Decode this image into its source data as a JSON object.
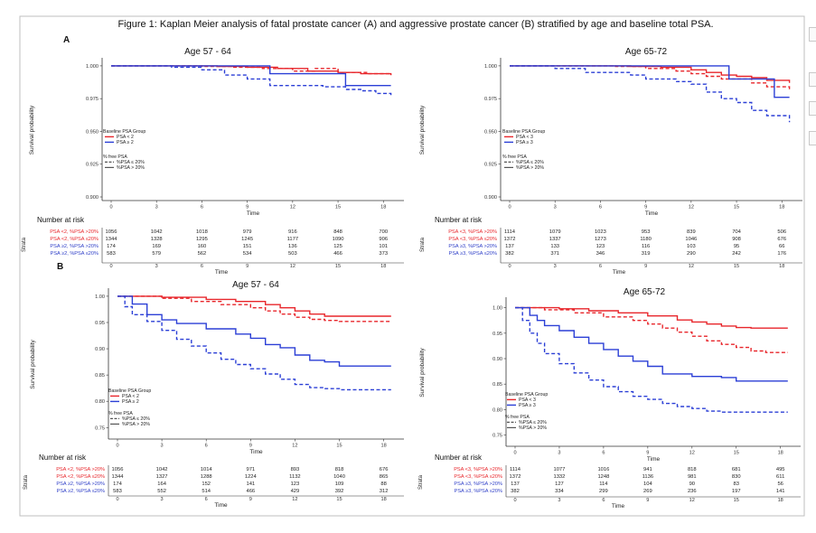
{
  "figure": {
    "title": "Figure 1:  Kaplan Meier analysis of fatal prostate cancer (A) and aggressive prostate cancer (B) stratified by age and baseline total PSA.",
    "panel_a_label": "A",
    "panel_b_label": "B"
  },
  "chart_data": [
    {
      "id": "A1",
      "type": "line",
      "title": "Age 57 - 64",
      "xlabel": "Time",
      "ylabel": "Survival probability",
      "xlim": [
        0,
        19
      ],
      "ylim": [
        0.9,
        1.002
      ],
      "xticks": [
        0,
        3,
        6,
        9,
        12,
        15,
        18
      ],
      "yticks": [
        "1.000",
        "0.975",
        "0.950",
        "0.925",
        "0.900"
      ],
      "ytick_values": [
        1.0,
        0.975,
        0.95,
        0.925,
        0.9
      ],
      "legend": {
        "group_title": "Baseline PSA Group",
        "group_items": [
          "PSA < 2",
          "PSA ≥ 2"
        ],
        "free_title": "% free PSA",
        "free_items": [
          "%PSA ≤ 20%",
          "%PSA > 20%"
        ]
      },
      "series": [
        {
          "name": "PSA <2, %PSA >20%",
          "color": "#e8262b",
          "dash": false,
          "x": [
            0,
            7,
            9,
            11,
            13,
            15,
            16.5,
            18.5
          ],
          "y": [
            1.0,
            0.9995,
            0.999,
            0.998,
            0.996,
            0.995,
            0.994,
            0.993
          ]
        },
        {
          "name": "PSA <2, %PSA ≤20%",
          "color": "#e8262b",
          "dash": true,
          "x": [
            0,
            6,
            8,
            10,
            12,
            13.5,
            15,
            17,
            18.5
          ],
          "y": [
            1.0,
            0.9995,
            0.999,
            0.998,
            0.996,
            0.998,
            0.995,
            0.994,
            0.993
          ]
        },
        {
          "name": "PSA ≥2, %PSA >20%",
          "color": "#2b3fd6",
          "dash": false,
          "x": [
            0,
            9.5,
            10.5,
            14.5,
            15.5,
            18.5
          ],
          "y": [
            1.0,
            1.0,
            0.994,
            0.994,
            0.985,
            0.985
          ]
        },
        {
          "name": "PSA ≥2, %PSA ≤20%",
          "color": "#2b3fd6",
          "dash": true,
          "x": [
            0,
            4,
            6,
            7.5,
            9,
            10.5,
            12,
            14,
            15.5,
            16.5,
            17.5,
            18.5
          ],
          "y": [
            1.0,
            0.999,
            0.997,
            0.993,
            0.99,
            0.985,
            0.985,
            0.984,
            0.982,
            0.981,
            0.979,
            0.977
          ]
        }
      ],
      "risk_table": {
        "title": "Number at risk",
        "strata_label": "Strata",
        "rows": [
          {
            "label": "PSA <2, %PSA >20%",
            "color": "#e8262b",
            "values": [
              "1056",
              "1042",
              "1018",
              "979",
              "916",
              "848",
              "700"
            ]
          },
          {
            "label": "PSA <2, %PSA ≤20%",
            "color": "#e8262b",
            "values": [
              "1344",
              "1328",
              "1295",
              "1245",
              "1177",
              "1090",
              "906"
            ]
          },
          {
            "label": "PSA ≥2, %PSA >20%",
            "color": "#3040c8",
            "values": [
              "174",
              "169",
              "160",
              "151",
              "136",
              "125",
              "101"
            ]
          },
          {
            "label": "PSA ≥2, %PSA ≤20%",
            "color": "#3040c8",
            "values": [
              "583",
              "579",
              "562",
              "534",
              "503",
              "466",
              "373"
            ]
          }
        ],
        "xticks": [
          "0",
          "3",
          "6",
          "9",
          "12",
          "15",
          "18"
        ]
      }
    },
    {
      "id": "A2",
      "type": "line",
      "title": "Age 65-72",
      "xlabel": "Time",
      "ylabel": "Survival probability",
      "xlim": [
        0,
        19
      ],
      "ylim": [
        0.9,
        1.002
      ],
      "xticks": [
        0,
        3,
        6,
        9,
        12,
        15,
        18
      ],
      "yticks": [
        "1.000",
        "0.975",
        "0.950",
        "0.925",
        "0.900"
      ],
      "ytick_values": [
        1.0,
        0.975,
        0.95,
        0.925,
        0.9
      ],
      "legend": {
        "group_title": "Baseline PSA Group",
        "group_items": [
          "PSA < 3",
          "PSA ≥ 3"
        ],
        "free_title": "% free PSA",
        "free_items": [
          "%PSA ≤ 20%",
          "%PSA > 20%"
        ]
      },
      "series": [
        {
          "name": "PSA <3, %PSA >20%",
          "color": "#e8262b",
          "dash": false,
          "x": [
            0,
            8,
            10,
            12,
            13,
            14,
            15,
            16,
            17,
            18.5
          ],
          "y": [
            1.0,
            0.9995,
            0.999,
            0.997,
            0.995,
            0.993,
            0.992,
            0.991,
            0.989,
            0.987
          ]
        },
        {
          "name": "PSA <3, %PSA ≤20%",
          "color": "#e8262b",
          "dash": true,
          "x": [
            0,
            7,
            9,
            11,
            12,
            13,
            14,
            15,
            16,
            17,
            18.5
          ],
          "y": [
            1.0,
            0.9995,
            0.998,
            0.996,
            0.994,
            0.992,
            0.99,
            0.99,
            0.987,
            0.984,
            0.981
          ]
        },
        {
          "name": "PSA ≥3, %PSA >20%",
          "color": "#2b3fd6",
          "dash": false,
          "x": [
            0,
            14,
            14.5,
            17,
            17.5,
            18.5
          ],
          "y": [
            1.0,
            1.0,
            0.99,
            0.99,
            0.976,
            0.976
          ]
        },
        {
          "name": "PSA ≥3, %PSA ≤20%",
          "color": "#2b3fd6",
          "dash": true,
          "x": [
            0,
            3,
            5,
            8,
            9,
            11,
            12,
            13,
            14,
            15,
            16,
            17,
            18,
            18.5
          ],
          "y": [
            1.0,
            0.998,
            0.995,
            0.993,
            0.99,
            0.988,
            0.986,
            0.98,
            0.975,
            0.972,
            0.966,
            0.962,
            0.962,
            0.957
          ]
        }
      ],
      "risk_table": {
        "title": "Number at risk",
        "strata_label": "Strata",
        "rows": [
          {
            "label": "PSA <3, %PSA >20%",
            "color": "#e8262b",
            "values": [
              "1114",
              "1079",
              "1023",
              "953",
              "839",
              "704",
              "506"
            ]
          },
          {
            "label": "PSA <3, %PSA ≤20%",
            "color": "#e8262b",
            "values": [
              "1372",
              "1337",
              "1273",
              "1180",
              "1046",
              "908",
              "676"
            ]
          },
          {
            "label": "PSA ≥3, %PSA >20%",
            "color": "#3040c8",
            "values": [
              "137",
              "133",
              "123",
              "116",
              "103",
              "95",
              "66"
            ]
          },
          {
            "label": "PSA ≥3, %PSA ≤20%",
            "color": "#3040c8",
            "values": [
              "382",
              "371",
              "346",
              "319",
              "290",
              "242",
              "176"
            ]
          }
        ],
        "xticks": [
          "0",
          "3",
          "6",
          "9",
          "12",
          "15",
          "18"
        ]
      }
    },
    {
      "id": "B1",
      "type": "line",
      "title": "Age 57 - 64",
      "xlabel": "Time",
      "ylabel": "Survival probability",
      "xlim": [
        0,
        19
      ],
      "ylim": [
        0.735,
        1.005
      ],
      "xticks": [
        0,
        3,
        6,
        9,
        12,
        15,
        18
      ],
      "yticks": [
        "1.00",
        "0.95",
        "0.90",
        "0.85",
        "0.80",
        "0.75"
      ],
      "ytick_values": [
        1.0,
        0.95,
        0.9,
        0.85,
        0.8,
        0.75
      ],
      "legend": {
        "group_title": "Baseline PSA Group",
        "group_items": [
          "PSA < 2",
          "PSA ≥ 2"
        ],
        "free_title": "% free PSA",
        "free_items": [
          "%PSA ≤ 20%",
          "%PSA > 20%"
        ]
      },
      "series": [
        {
          "name": "PSA <2, %PSA >20%",
          "color": "#e8262b",
          "dash": false,
          "x": [
            0,
            3,
            6,
            8,
            10,
            11,
            12,
            13,
            14,
            16,
            18.5
          ],
          "y": [
            1.0,
            0.998,
            0.994,
            0.99,
            0.984,
            0.978,
            0.972,
            0.966,
            0.962,
            0.962,
            0.962
          ]
        },
        {
          "name": "PSA <2, %PSA ≤20%",
          "color": "#e8262b",
          "dash": true,
          "x": [
            0,
            3,
            5,
            7,
            9,
            10,
            11,
            12,
            13,
            14,
            15,
            16,
            18.5
          ],
          "y": [
            1.0,
            0.996,
            0.99,
            0.984,
            0.978,
            0.972,
            0.966,
            0.96,
            0.956,
            0.954,
            0.952,
            0.952,
            0.952
          ]
        },
        {
          "name": "PSA ≥2, %PSA >20%",
          "color": "#2b3fd6",
          "dash": false,
          "x": [
            0,
            1,
            2,
            3,
            4,
            6,
            8,
            9,
            10,
            11,
            12,
            13,
            14,
            15,
            18.5
          ],
          "y": [
            1.0,
            0.985,
            0.965,
            0.955,
            0.948,
            0.938,
            0.928,
            0.92,
            0.908,
            0.902,
            0.888,
            0.878,
            0.875,
            0.867,
            0.867
          ]
        },
        {
          "name": "PSA ≥2, %PSA ≤20%",
          "color": "#2b3fd6",
          "dash": true,
          "x": [
            0,
            0.5,
            1,
            2,
            3,
            4,
            5,
            6,
            7,
            8,
            9,
            10,
            11,
            12,
            13,
            14,
            15,
            18.5
          ],
          "y": [
            1.0,
            0.98,
            0.965,
            0.952,
            0.935,
            0.918,
            0.905,
            0.892,
            0.88,
            0.87,
            0.862,
            0.852,
            0.842,
            0.832,
            0.826,
            0.824,
            0.822,
            0.822
          ]
        }
      ],
      "risk_table": {
        "title": "Number at risk",
        "strata_label": "Strata",
        "rows": [
          {
            "label": "PSA <2, %PSA >20%",
            "color": "#e8262b",
            "values": [
              "1056",
              "1042",
              "1014",
              "971",
              "893",
              "818",
              "676"
            ]
          },
          {
            "label": "PSA <2, %PSA ≤20%",
            "color": "#e8262b",
            "values": [
              "1344",
              "1327",
              "1288",
              "1224",
              "1132",
              "1040",
              "865"
            ]
          },
          {
            "label": "PSA ≥2, %PSA >20%",
            "color": "#3040c8",
            "values": [
              "174",
              "164",
              "152",
              "141",
              "123",
              "109",
              "88"
            ]
          },
          {
            "label": "PSA ≥2, %PSA ≤20%",
            "color": "#3040c8",
            "values": [
              "583",
              "552",
              "514",
              "466",
              "429",
              "392",
              "312"
            ]
          }
        ],
        "xticks": [
          "0",
          "3",
          "6",
          "9",
          "12",
          "15",
          "18"
        ]
      }
    },
    {
      "id": "B2",
      "type": "line",
      "title": "Age 65-72",
      "xlabel": "Time",
      "ylabel": "Survival probability",
      "xlim": [
        0,
        19
      ],
      "ylim": [
        0.735,
        1.01
      ],
      "xticks": [
        0,
        3,
        6,
        9,
        12,
        15,
        18
      ],
      "yticks": [
        "1.00",
        "0.95",
        "0.90",
        "0.85",
        "0.80",
        "0.75"
      ],
      "ytick_values": [
        1.0,
        0.95,
        0.9,
        0.85,
        0.8,
        0.75
      ],
      "legend": {
        "group_title": "Baseline PSA Group",
        "group_items": [
          "PSA < 3",
          "PSA ≥ 3"
        ],
        "free_title": "% free PSA",
        "free_items": [
          "%PSA ≤ 20%",
          "%PSA > 20%"
        ]
      },
      "series": [
        {
          "name": "PSA <3, %PSA >20%",
          "color": "#e8262b",
          "dash": false,
          "x": [
            0,
            3,
            5,
            7,
            9,
            11,
            12,
            13,
            14,
            15,
            16,
            18.5
          ],
          "y": [
            1.0,
            0.998,
            0.994,
            0.99,
            0.984,
            0.976,
            0.972,
            0.968,
            0.964,
            0.961,
            0.96,
            0.96
          ]
        },
        {
          "name": "PSA <3, %PSA ≤20%",
          "color": "#e8262b",
          "dash": true,
          "x": [
            0,
            2,
            4,
            6,
            8,
            9,
            10,
            11,
            12,
            13,
            14,
            15,
            16,
            17,
            18.5
          ],
          "y": [
            1.0,
            0.996,
            0.99,
            0.982,
            0.975,
            0.968,
            0.96,
            0.952,
            0.944,
            0.935,
            0.928,
            0.922,
            0.915,
            0.912,
            0.912
          ]
        },
        {
          "name": "PSA ≥3, %PSA >20%",
          "color": "#2b3fd6",
          "dash": false,
          "x": [
            0,
            1,
            1.5,
            2,
            3,
            4,
            5,
            6,
            7,
            8,
            9,
            10,
            12,
            14,
            15,
            18.5
          ],
          "y": [
            1.0,
            0.985,
            0.975,
            0.965,
            0.955,
            0.942,
            0.93,
            0.918,
            0.905,
            0.895,
            0.885,
            0.87,
            0.865,
            0.863,
            0.856,
            0.856
          ]
        },
        {
          "name": "PSA ≥3, %PSA ≤20%",
          "color": "#2b3fd6",
          "dash": true,
          "x": [
            0,
            0.5,
            1,
            1.5,
            2,
            3,
            4,
            5,
            6,
            7,
            8,
            9,
            10,
            11,
            12,
            13,
            14,
            18.5
          ],
          "y": [
            1.0,
            0.975,
            0.95,
            0.93,
            0.91,
            0.89,
            0.872,
            0.858,
            0.845,
            0.835,
            0.826,
            0.82,
            0.812,
            0.806,
            0.802,
            0.797,
            0.795,
            0.795
          ]
        }
      ],
      "risk_table": {
        "title": "Number at risk",
        "strata_label": "Strata",
        "rows": [
          {
            "label": "PSA <3, %PSA >20%",
            "color": "#e8262b",
            "values": [
              "1114",
              "1077",
              "1016",
              "941",
              "818",
              "681",
              "495"
            ]
          },
          {
            "label": "PSA <3, %PSA ≤20%",
            "color": "#e8262b",
            "values": [
              "1372",
              "1332",
              "1248",
              "1136",
              "981",
              "830",
              "611"
            ]
          },
          {
            "label": "PSA ≥3, %PSA >20%",
            "color": "#3040c8",
            "values": [
              "137",
              "127",
              "114",
              "104",
              "90",
              "83",
              "56"
            ]
          },
          {
            "label": "PSA ≥3, %PSA ≤20%",
            "color": "#3040c8",
            "values": [
              "382",
              "334",
              "299",
              "269",
              "236",
              "197",
              "141"
            ]
          }
        ],
        "xticks": [
          "0",
          "3",
          "6",
          "9",
          "12",
          "15",
          "18"
        ]
      }
    }
  ]
}
